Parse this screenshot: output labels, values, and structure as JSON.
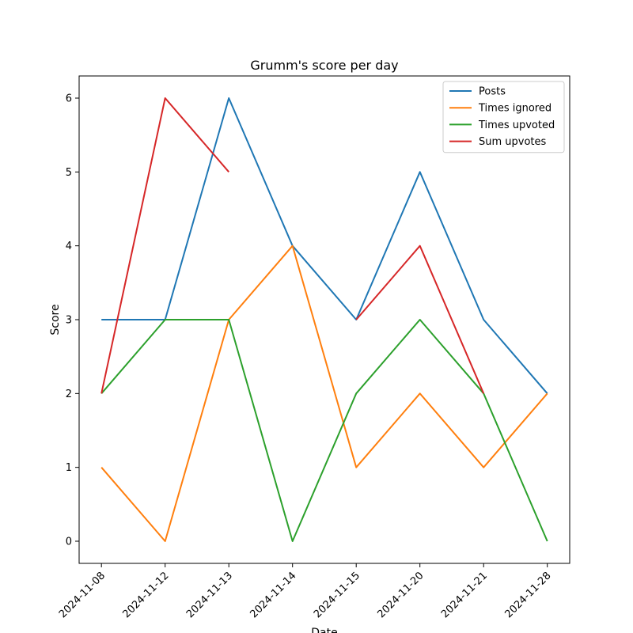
{
  "chart_data": {
    "type": "line",
    "title": "Grumm's score per day",
    "xlabel": "Date",
    "ylabel": "Score",
    "x": [
      "2024-11-08",
      "2024-11-12",
      "2024-11-13",
      "2024-11-14",
      "2024-11-15",
      "2024-11-20",
      "2024-11-21",
      "2024-11-28"
    ],
    "yticks": [
      0,
      1,
      2,
      3,
      4,
      5,
      6
    ],
    "ylim": [
      -0.3,
      6.3
    ],
    "grid": false,
    "legend_position": "top-right",
    "series": [
      {
        "name": "Posts",
        "color": "#1f77b4",
        "values": [
          3,
          3,
          6,
          4,
          3,
          5,
          3,
          2
        ]
      },
      {
        "name": "Times ignored",
        "color": "#ff7f0e",
        "values": [
          1,
          0,
          3,
          4,
          1,
          2,
          1,
          2
        ]
      },
      {
        "name": "Times upvoted",
        "color": "#2ca02c",
        "values": [
          2,
          3,
          3,
          0,
          2,
          3,
          2,
          0
        ]
      },
      {
        "name": "Sum upvotes",
        "color": "#d62728",
        "values": [
          2,
          6,
          5,
          null,
          3,
          4,
          2,
          null
        ]
      }
    ]
  }
}
